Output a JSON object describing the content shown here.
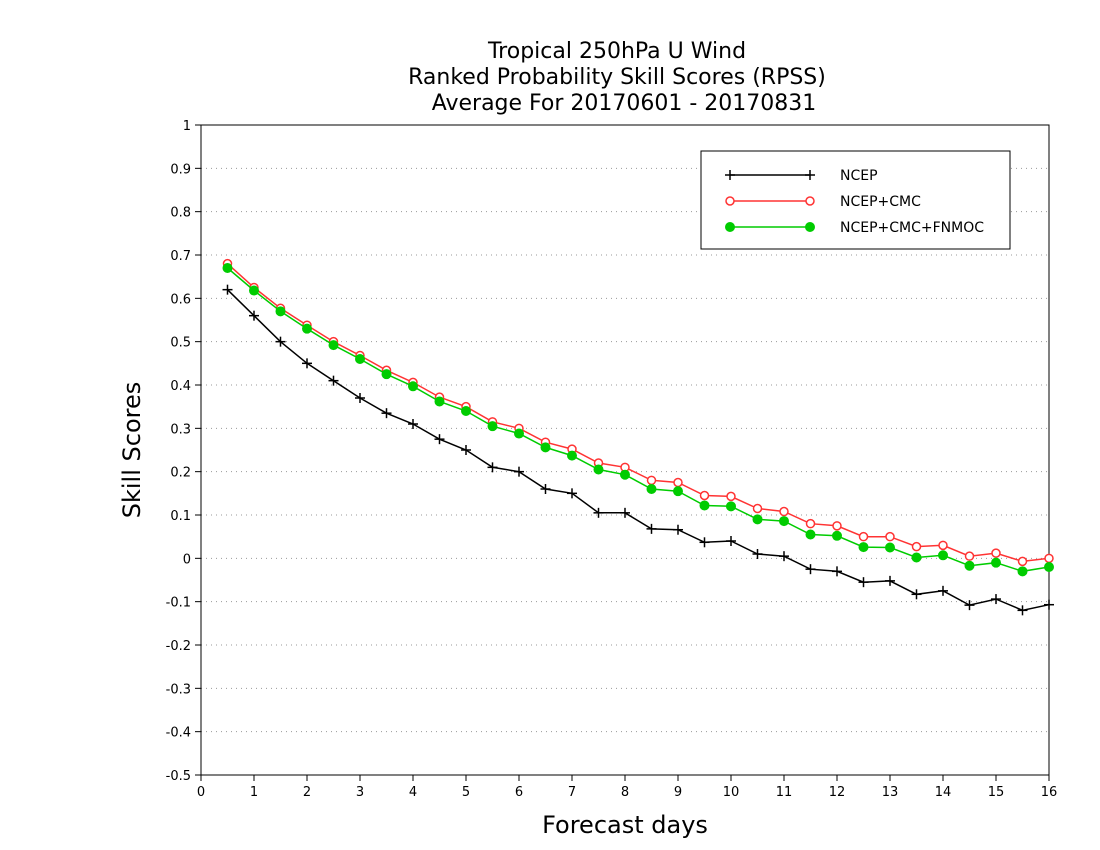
{
  "chart_data": {
    "type": "line",
    "title_lines": [
      "Tropical 250hPa U Wind",
      "Ranked Probability Skill Scores (RPSS)",
      "Average For 20170601 - 20170831"
    ],
    "xlabel": "Forecast days",
    "ylabel": "Skill Scores",
    "xlim": [
      0,
      16
    ],
    "ylim": [
      -0.5,
      1
    ],
    "xticks": [
      "0",
      "1",
      "2",
      "3",
      "4",
      "5",
      "6",
      "7",
      "8",
      "9",
      "10",
      "11",
      "12",
      "13",
      "14",
      "15",
      "16"
    ],
    "yticks": [
      "1",
      "0.9",
      "0.8",
      "0.7",
      "0.6",
      "0.5",
      "0.4",
      "0.3",
      "0.2",
      "0.1",
      "0",
      "-0.1",
      "-0.2",
      "-0.3",
      "-0.4",
      "-0.5"
    ],
    "grid": "horizontal dotted",
    "legend_position": "top-right",
    "x": [
      0.5,
      1,
      1.5,
      2,
      2.5,
      3,
      3.5,
      4,
      4.5,
      5,
      5.5,
      6,
      6.5,
      7,
      7.5,
      8,
      8.5,
      9,
      9.5,
      10,
      10.5,
      11,
      11.5,
      12,
      12.5,
      13,
      13.5,
      14,
      14.5,
      15,
      15.5,
      16
    ],
    "series": [
      {
        "name": "NCEP",
        "color": "#000000",
        "marker": "plus",
        "values": [
          0.62,
          0.56,
          0.5,
          0.45,
          0.41,
          0.37,
          0.335,
          0.31,
          0.275,
          0.25,
          0.21,
          0.2,
          0.16,
          0.15,
          0.105,
          0.105,
          0.068,
          0.066,
          0.037,
          0.04,
          0.01,
          0.005,
          -0.025,
          -0.03,
          -0.055,
          -0.052,
          -0.083,
          -0.075,
          -0.108,
          -0.094,
          -0.12,
          -0.107
        ]
      },
      {
        "name": "NCEP+CMC",
        "color": "#ff3333",
        "marker": "open-circle",
        "values": [
          0.68,
          0.625,
          0.577,
          0.538,
          0.5,
          0.468,
          0.434,
          0.406,
          0.372,
          0.35,
          0.315,
          0.3,
          0.268,
          0.252,
          0.22,
          0.21,
          0.18,
          0.175,
          0.145,
          0.143,
          0.115,
          0.108,
          0.08,
          0.075,
          0.05,
          0.05,
          0.027,
          0.03,
          0.005,
          0.012,
          -0.007,
          0.0
        ]
      },
      {
        "name": "NCEP+CMC+FNMOC",
        "color": "#00cc00",
        "marker": "filled-circle",
        "values": [
          0.67,
          0.618,
          0.57,
          0.53,
          0.492,
          0.46,
          0.425,
          0.397,
          0.362,
          0.34,
          0.305,
          0.288,
          0.256,
          0.237,
          0.205,
          0.193,
          0.16,
          0.155,
          0.122,
          0.12,
          0.09,
          0.086,
          0.055,
          0.052,
          0.026,
          0.025,
          0.002,
          0.007,
          -0.017,
          -0.01,
          -0.03,
          -0.02
        ]
      }
    ]
  }
}
